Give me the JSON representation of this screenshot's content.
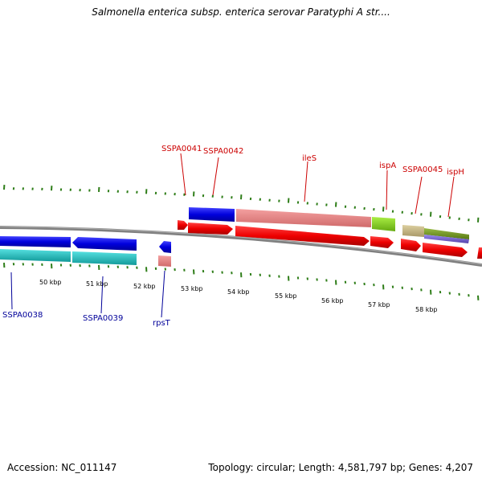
{
  "title": "Salmonella enterica subsp. enterica serovar Paratyphi A str....",
  "accession": "Accession: NC_011147",
  "summary": "Topology: circular; Length: 4,581,797 bp; Genes: 4,207",
  "colors": {
    "forward_label": "#cc0000",
    "reverse_label": "#000099",
    "tick": "#2e7d18",
    "backbone": "#808080",
    "cds_fwd": "#ee0000",
    "cds_rev": "#0000dd",
    "gene_pink": "#e88080",
    "gene_cyan": "#22cccc",
    "gene_green": "#88cc22",
    "gene_tan": "#c8b888",
    "gene_olive": "#779922",
    "gene_purple": "#7766cc"
  },
  "scale_labels": [
    "50 kbp",
    "51 kbp",
    "52 kbp",
    "53 kbp",
    "54 kbp",
    "55 kbp",
    "56 kbp",
    "57 kbp",
    "58 kbp"
  ],
  "forward_genes": [
    "SSPA0041",
    "SSPA0042",
    "ileS",
    "ispA",
    "SSPA0045",
    "ispH"
  ],
  "reverse_genes": [
    "SSPA0038",
    "SSPA0039",
    "rpsT"
  ]
}
